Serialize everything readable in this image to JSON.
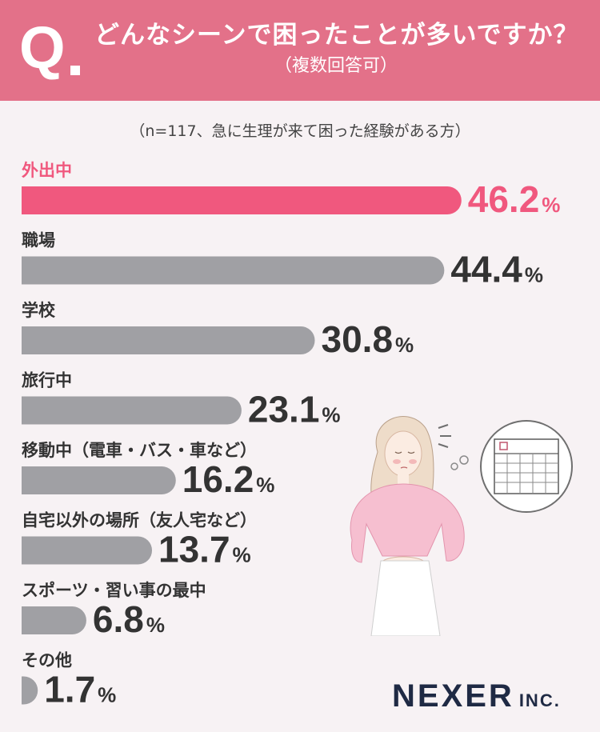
{
  "header": {
    "q_letter": "Q",
    "title": "どんなシーンで困ったことが多いですか？",
    "subtitle": "（複数回答可）"
  },
  "note": "（n=117、急に生理が来て困った経験がある方）",
  "logo": {
    "main": "NEXER",
    "suffix": "INC."
  },
  "colors": {
    "highlight": "#f0587e",
    "bar": "#a0a0a4",
    "header": "#e37189",
    "value": "#333333"
  },
  "chart_data": {
    "type": "bar",
    "orientation": "horizontal",
    "categories": [
      "外出中",
      "職場",
      "学校",
      "旅行中",
      "移動中（電車・バス・車など）",
      "自宅以外の場所（友人宅など）",
      "スポーツ・習い事の最中",
      "その他"
    ],
    "values": [
      46.2,
      44.4,
      30.8,
      23.1,
      16.2,
      13.7,
      6.8,
      1.7
    ],
    "value_labels": [
      "46.2",
      "44.4",
      "30.8",
      "23.1",
      "16.2",
      "13.7",
      "6.8",
      "1.7"
    ],
    "unit": "%",
    "highlight_index": 0
  }
}
